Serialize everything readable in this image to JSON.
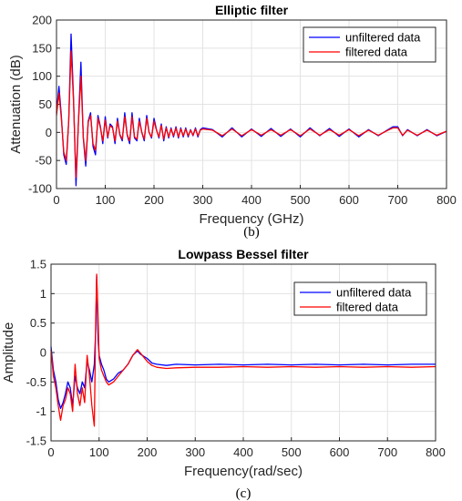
{
  "chart_data": [
    {
      "type": "line",
      "title": "Elliptic filter",
      "xlabel": "Frequency (GHz)",
      "ylabel": "Attenuation (dB)",
      "caption": "(b)",
      "xlim": [
        0,
        800
      ],
      "ylim": [
        -100,
        200
      ],
      "xticks": [
        "0",
        "100",
        "200",
        "300",
        "400",
        "500",
        "600",
        "700",
        "800"
      ],
      "yticks": [
        "-100",
        "-50",
        "0",
        "50",
        "100",
        "150",
        "200"
      ],
      "grid": true,
      "legend_position": "top-right",
      "series": [
        {
          "name": "unfiltered data",
          "color": "#0000ff",
          "x": [
            0,
            5,
            10,
            15,
            20,
            25,
            30,
            35,
            40,
            45,
            50,
            55,
            60,
            65,
            70,
            75,
            80,
            85,
            90,
            95,
            100,
            105,
            110,
            115,
            120,
            125,
            130,
            135,
            140,
            145,
            150,
            155,
            160,
            165,
            170,
            175,
            180,
            185,
            190,
            195,
            200,
            205,
            210,
            215,
            220,
            225,
            230,
            235,
            240,
            245,
            250,
            255,
            260,
            265,
            270,
            275,
            280,
            285,
            290,
            295,
            300,
            320,
            340,
            360,
            380,
            400,
            420,
            440,
            460,
            480,
            500,
            520,
            540,
            560,
            580,
            600,
            620,
            640,
            660,
            680,
            690,
            700,
            710,
            720,
            740,
            760,
            780,
            800
          ],
          "y": [
            35,
            82,
            30,
            -40,
            -57,
            20,
            175,
            60,
            -95,
            20,
            125,
            -10,
            -60,
            20,
            35,
            -25,
            -40,
            30,
            10,
            -20,
            28,
            -10,
            15,
            10,
            -20,
            25,
            -5,
            -15,
            35,
            -5,
            -20,
            35,
            -10,
            -15,
            25,
            0,
            -15,
            30,
            0,
            -10,
            25,
            5,
            -10,
            15,
            -15,
            10,
            -10,
            8,
            -8,
            10,
            -10,
            8,
            -8,
            8,
            -8,
            5,
            -6,
            8,
            -8,
            5,
            8,
            5,
            -8,
            8,
            -8,
            6,
            -7,
            7,
            -7,
            6,
            -8,
            8,
            -6,
            7,
            -7,
            6,
            -8,
            5,
            -6,
            5,
            10,
            10,
            -6,
            5,
            -6,
            5,
            -6,
            2
          ]
        },
        {
          "name": "filtered data",
          "color": "#ff0000",
          "x": [
            0,
            5,
            10,
            15,
            20,
            25,
            30,
            35,
            40,
            45,
            50,
            55,
            60,
            65,
            70,
            75,
            80,
            85,
            90,
            95,
            100,
            105,
            110,
            115,
            120,
            125,
            130,
            135,
            140,
            145,
            150,
            155,
            160,
            165,
            170,
            175,
            180,
            185,
            190,
            195,
            200,
            205,
            210,
            215,
            220,
            225,
            230,
            235,
            240,
            245,
            250,
            255,
            260,
            265,
            270,
            275,
            280,
            285,
            290,
            295,
            300,
            320,
            340,
            360,
            380,
            400,
            420,
            440,
            460,
            480,
            500,
            520,
            540,
            560,
            580,
            600,
            620,
            640,
            660,
            680,
            690,
            700,
            710,
            720,
            740,
            760,
            780,
            800
          ],
          "y": [
            30,
            70,
            25,
            -35,
            -50,
            20,
            145,
            55,
            -80,
            18,
            100,
            -8,
            -50,
            18,
            30,
            -20,
            -32,
            25,
            8,
            -15,
            22,
            -8,
            12,
            8,
            -15,
            20,
            -4,
            -12,
            28,
            -4,
            -15,
            28,
            -8,
            -12,
            20,
            0,
            -12,
            25,
            0,
            -8,
            20,
            4,
            -8,
            12,
            -12,
            8,
            -8,
            6,
            -6,
            8,
            -8,
            6,
            -6,
            6,
            -6,
            4,
            -5,
            6,
            -6,
            4,
            6,
            4,
            -6,
            6,
            -6,
            5,
            -5,
            5,
            -5,
            5,
            -6,
            6,
            -5,
            5,
            -5,
            5,
            -6,
            4,
            -5,
            4,
            8,
            8,
            -5,
            4,
            -5,
            4,
            -5,
            2
          ]
        }
      ]
    },
    {
      "type": "line",
      "title": "Lowpass Bessel filter",
      "xlabel": "Frequency(rad/sec)",
      "ylabel": "Amplitude",
      "caption": "(c)",
      "xlim": [
        0,
        800
      ],
      "ylim": [
        -1.5,
        1.5
      ],
      "xticks": [
        "0",
        "100",
        "200",
        "300",
        "400",
        "500",
        "600",
        "700",
        "800"
      ],
      "yticks": [
        "-1.5",
        "-1",
        "-0.5",
        "0",
        "0.5",
        "1",
        "1.5"
      ],
      "grid": true,
      "legend_position": "top-right",
      "series": [
        {
          "name": "unfiltered data",
          "color": "#0000ff",
          "x": [
            0,
            5,
            10,
            15,
            20,
            25,
            30,
            35,
            40,
            45,
            50,
            55,
            60,
            65,
            70,
            75,
            80,
            85,
            90,
            93,
            95,
            98,
            100,
            105,
            110,
            115,
            120,
            130,
            140,
            150,
            160,
            170,
            180,
            185,
            190,
            200,
            210,
            220,
            240,
            260,
            300,
            350,
            400,
            450,
            500,
            550,
            600,
            650,
            700,
            750,
            800
          ],
          "y": [
            0.1,
            -0.3,
            -0.5,
            -0.8,
            -0.95,
            -0.85,
            -0.7,
            -0.5,
            -0.6,
            -0.9,
            -0.4,
            -0.6,
            -0.7,
            -0.5,
            -0.6,
            -0.15,
            -0.3,
            -0.5,
            -0.2,
            0.4,
            1.3,
            0.2,
            -0.05,
            -0.2,
            -0.3,
            -0.45,
            -0.5,
            -0.45,
            -0.35,
            -0.3,
            -0.2,
            -0.05,
            0.03,
            -0.02,
            -0.05,
            -0.1,
            -0.18,
            -0.2,
            -0.22,
            -0.2,
            -0.21,
            -0.2,
            -0.21,
            -0.2,
            -0.21,
            -0.2,
            -0.21,
            -0.2,
            -0.21,
            -0.2,
            -0.2
          ]
        },
        {
          "name": "filtered data",
          "color": "#ff0000",
          "x": [
            0,
            5,
            10,
            15,
            20,
            25,
            30,
            35,
            40,
            45,
            50,
            55,
            60,
            65,
            70,
            75,
            80,
            85,
            90,
            93,
            95,
            98,
            100,
            105,
            110,
            115,
            120,
            130,
            140,
            150,
            160,
            170,
            180,
            185,
            190,
            200,
            210,
            220,
            240,
            260,
            300,
            350,
            400,
            450,
            500,
            550,
            600,
            650,
            700,
            750,
            800
          ],
          "y": [
            0.05,
            -0.4,
            -0.6,
            -0.9,
            -1.15,
            -0.9,
            -0.8,
            -0.6,
            -0.7,
            -1.0,
            -0.2,
            -0.7,
            -0.9,
            -0.6,
            -0.85,
            -0.05,
            -0.4,
            -0.9,
            -1.25,
            0.6,
            1.33,
            0.5,
            -0.1,
            -0.3,
            -0.4,
            -0.5,
            -0.55,
            -0.5,
            -0.4,
            -0.3,
            -0.2,
            -0.05,
            0.05,
            0.0,
            -0.05,
            -0.15,
            -0.22,
            -0.25,
            -0.27,
            -0.26,
            -0.25,
            -0.25,
            -0.24,
            -0.25,
            -0.24,
            -0.25,
            -0.24,
            -0.25,
            -0.24,
            -0.25,
            -0.24
          ]
        }
      ]
    }
  ]
}
